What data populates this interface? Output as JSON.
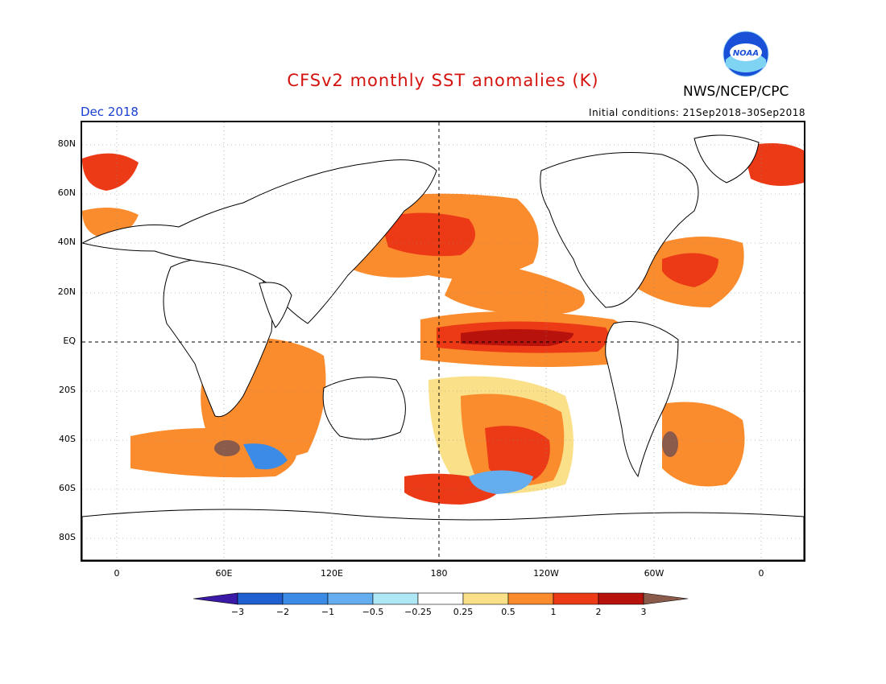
{
  "header": {
    "title": "CFSv2 monthly SST anomalies (K)",
    "agency": "NWS/NCEP/CPC",
    "logo_text": "NOAA",
    "valid_month": "Dec 2018",
    "initial_conditions": "Initial conditions: 21Sep2018–30Sep2018"
  },
  "map": {
    "lat_labels": [
      "80N",
      "60N",
      "40N",
      "20N",
      "EQ",
      "20S",
      "40S",
      "60S",
      "80S"
    ],
    "lon_labels": [
      "0",
      "60E",
      "120E",
      "180",
      "120W",
      "60W",
      "0"
    ]
  },
  "colorbar": {
    "labels": [
      "−3",
      "−2",
      "−1",
      "−0.5",
      "−0.25",
      "0.25",
      "0.5",
      "1",
      "2",
      "3"
    ],
    "colors": [
      "#3a1aa6",
      "#1f5fd0",
      "#3c8be6",
      "#64aef0",
      "#aee8f5",
      "#ffffff",
      "#fbe08a",
      "#fb8c2e",
      "#ec3a17",
      "#b8120c",
      "#8a5a4a"
    ]
  },
  "colors": {
    "title": "#d4130f",
    "month": "#1a3fd1",
    "land": "#ffffff",
    "ocean_base": "#ffffff"
  }
}
